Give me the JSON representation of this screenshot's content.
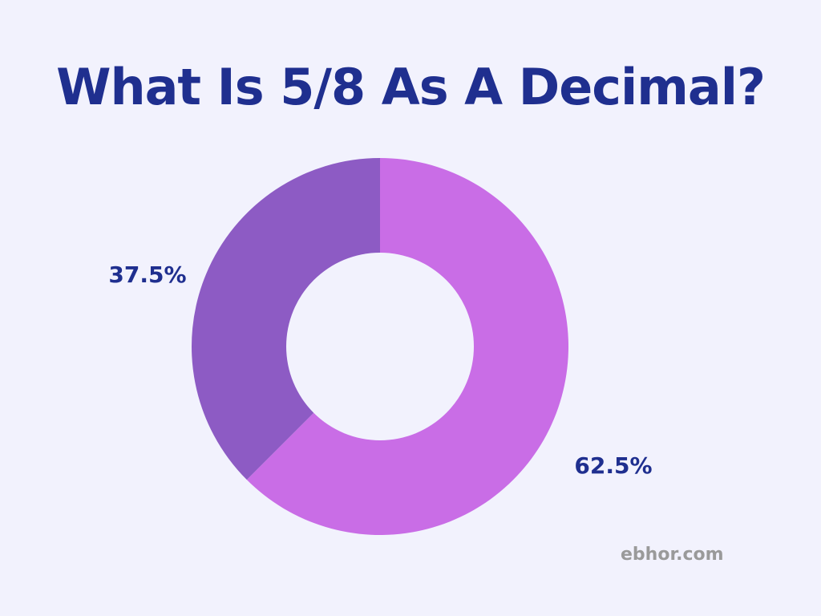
{
  "title": "What Is 5/8 As A Decimal?",
  "watermark": "ebhor.com",
  "colors": {
    "background": "#f2f2fd",
    "title": "#1f2f8f",
    "label": "#1f2f8f",
    "slice_large": "#c96de6",
    "slice_small": "#8d5bc4",
    "hole": "#f2f2fd",
    "watermark": "#9a9a9a"
  },
  "chart_data": {
    "type": "pie",
    "variant": "donut",
    "title": "What Is 5/8 As A Decimal?",
    "slices": [
      {
        "value": 62.5,
        "label": "62.5%",
        "color": "#c96de6"
      },
      {
        "value": 37.5,
        "label": "37.5%",
        "color": "#8d5bc4"
      }
    ],
    "start_angle": "12 o'clock",
    "direction": "clockwise",
    "legend": "none",
    "grid": false
  }
}
